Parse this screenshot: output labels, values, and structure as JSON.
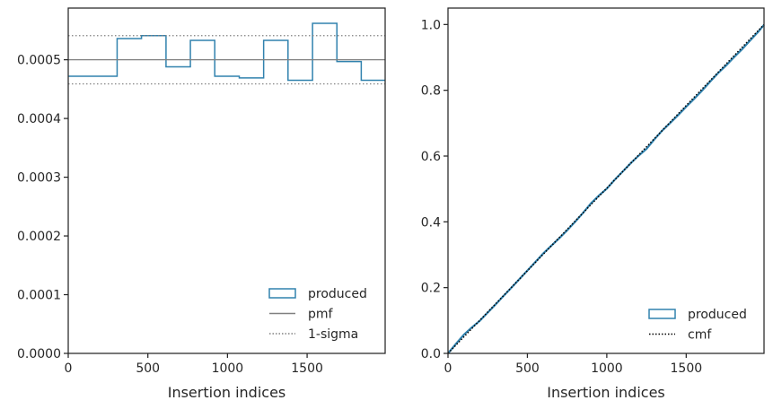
{
  "chart_data": [
    {
      "type": "histogram-step",
      "xlabel": "Insertion indices",
      "ylabel": "",
      "xlim": [
        0,
        1990
      ],
      "ylim": [
        0,
        0.000588
      ],
      "x_ticks": [
        0,
        500,
        1000,
        1500
      ],
      "x_tick_labels": [
        "0",
        "500",
        "1000",
        "1500"
      ],
      "y_ticks": [
        0,
        0.0001,
        0.0002,
        0.0003,
        0.0004,
        0.0005
      ],
      "y_tick_labels": [
        "0.0000",
        "0.0001",
        "0.0002",
        "0.0003",
        "0.0004",
        "0.0005"
      ],
      "grid": false,
      "legend_position": "lower-right",
      "series": [
        {
          "name": "produced",
          "style": "step",
          "color": "#3182ae",
          "bin_edges": [
            0,
            307,
            460,
            614,
            767,
            920,
            1074,
            1227,
            1380,
            1534,
            1687,
            1840,
            1990
          ],
          "values": [
            0.000472,
            0.000536,
            0.000541,
            0.000488,
            0.000533,
            0.000472,
            0.000469,
            0.000533,
            0.000465,
            0.000562,
            0.000497,
            0.000465
          ]
        },
        {
          "name": "pmf",
          "style": "solid-hline",
          "color": "#808080",
          "y": 0.0005
        },
        {
          "name": "1-sigma",
          "style": "dotted-hline",
          "color": "#808080",
          "y": [
            0.000459,
            0.000541
          ]
        }
      ]
    },
    {
      "type": "line",
      "xlabel": "Insertion indices",
      "ylabel": "",
      "xlim": [
        0,
        1990
      ],
      "ylim": [
        0,
        1.05
      ],
      "x_ticks": [
        0,
        500,
        1000,
        1500
      ],
      "x_tick_labels": [
        "0",
        "500",
        "1000",
        "1500"
      ],
      "y_ticks": [
        0,
        0.2,
        0.4,
        0.6,
        0.8,
        1.0
      ],
      "y_tick_labels": [
        "0.0",
        "0.2",
        "0.4",
        "0.6",
        "0.8",
        "1.0"
      ],
      "grid": false,
      "legend_position": "lower-right",
      "series": [
        {
          "name": "produced",
          "style": "solid",
          "color": "#3182ae",
          "x": [
            0,
            50,
            100,
            150,
            200,
            250,
            300,
            350,
            400,
            450,
            500,
            550,
            600,
            650,
            700,
            750,
            800,
            850,
            900,
            950,
            1000,
            1050,
            1100,
            1150,
            1200,
            1250,
            1300,
            1350,
            1400,
            1450,
            1500,
            1550,
            1600,
            1650,
            1700,
            1750,
            1800,
            1850,
            1900,
            1950,
            1990
          ],
          "y": [
            0,
            0.029,
            0.057,
            0.079,
            0.099,
            0.124,
            0.149,
            0.175,
            0.2,
            0.226,
            0.252,
            0.278,
            0.304,
            0.327,
            0.35,
            0.374,
            0.4,
            0.427,
            0.456,
            0.48,
            0.501,
            0.528,
            0.553,
            0.578,
            0.601,
            0.622,
            0.651,
            0.678,
            0.701,
            0.725,
            0.75,
            0.774,
            0.799,
            0.826,
            0.852,
            0.875,
            0.9,
            0.924,
            0.95,
            0.976,
            0.999
          ]
        },
        {
          "name": "cmf",
          "style": "dotted",
          "color": "#000000",
          "x": [
            0,
            1990
          ],
          "y": [
            0,
            1.0
          ]
        }
      ]
    }
  ]
}
